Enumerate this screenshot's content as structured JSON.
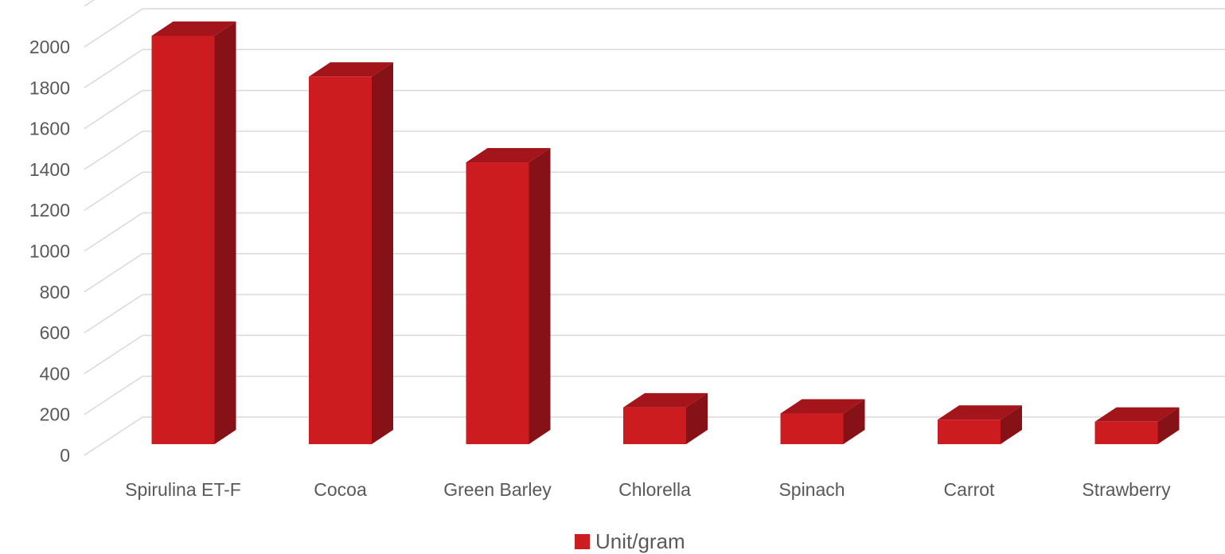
{
  "chart_data": {
    "type": "bar",
    "categories": [
      "Spirulina ET-F",
      "Cocoa",
      "Green Barley",
      "Chlorella",
      "Spinach",
      "Carrot",
      "Strawberry"
    ],
    "series": [
      {
        "name": "Unit/gram",
        "values": [
          2000,
          1800,
          1380,
          180,
          150,
          120,
          110
        ]
      }
    ],
    "ylim": [
      0,
      2000
    ],
    "yticks": [
      0,
      200,
      400,
      600,
      800,
      1000,
      1200,
      1400,
      1600,
      1800,
      2000
    ],
    "grid": true,
    "three_d": true,
    "legend_position": "bottom",
    "colors": {
      "front": "#cd1c20",
      "top": "#a3151a",
      "side": "#861116",
      "grid": "#d9d9d9",
      "text": "#595959"
    }
  }
}
